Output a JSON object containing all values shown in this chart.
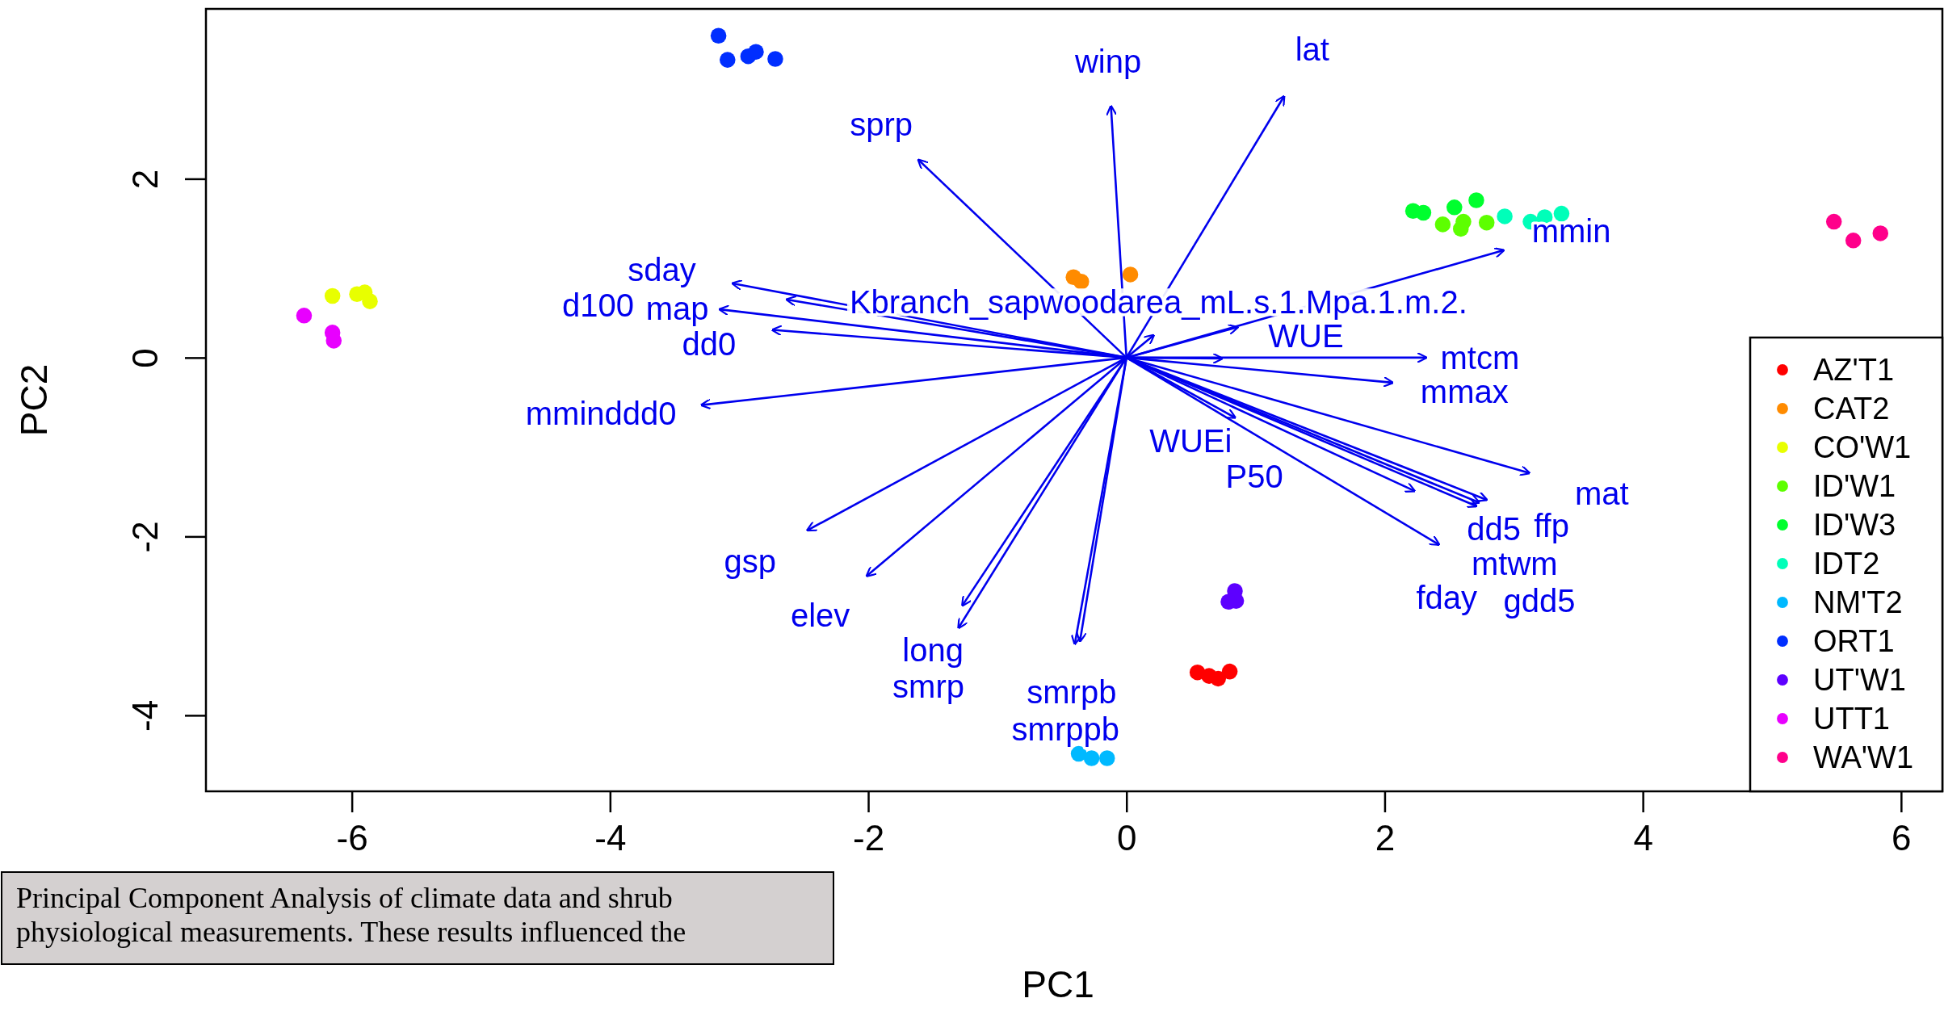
{
  "chart_data": {
    "type": "scatter",
    "xlabel": "PC1",
    "ylabel": "PC2",
    "xlim": [
      -7.13,
      6.32
    ],
    "ylim": [
      -4.85,
      3.9
    ],
    "xticks": [
      -6,
      -4,
      -2,
      0,
      2,
      4,
      6
    ],
    "yticks": [
      -4,
      -2,
      0,
      2
    ],
    "grid": false,
    "legend": "bottom right",
    "marker": "circle",
    "annotations": [
      "Principal Component Analysis of climate data and shrub physiological measurements. These results influenced the"
    ],
    "series": [
      {
        "name": "AZ'T1",
        "color": "#ff0000",
        "x": [
          0.55,
          0.64,
          0.71,
          0.8
        ],
        "values": [
          -3.52,
          -3.56,
          -3.59,
          -3.51
        ]
      },
      {
        "name": "CAT2",
        "color": "#ff8b00",
        "x": [
          -0.41,
          -0.35,
          0.03
        ],
        "values": [
          0.9,
          0.85,
          0.93
        ]
      },
      {
        "name": "CO'W1",
        "color": "#e8ff00",
        "x": [
          -6.15,
          -5.96,
          -5.9,
          -5.86
        ],
        "values": [
          0.69,
          0.71,
          0.73,
          0.63
        ]
      },
      {
        "name": "ID'W1",
        "color": "#5dff00",
        "x": [
          2.45,
          2.61,
          2.79,
          2.59
        ],
        "values": [
          1.49,
          1.52,
          1.51,
          1.44
        ]
      },
      {
        "name": "ID'W3",
        "color": "#00ff2e",
        "x": [
          2.22,
          2.3,
          2.54,
          2.71
        ],
        "values": [
          1.64,
          1.62,
          1.68,
          1.76
        ]
      },
      {
        "name": "IDT2",
        "color": "#00ffb9",
        "x": [
          2.93,
          3.13,
          3.24,
          3.37
        ],
        "values": [
          1.58,
          1.52,
          1.57,
          1.61
        ]
      },
      {
        "name": "NM'T2",
        "color": "#00b9ff",
        "x": [
          -0.37,
          -0.27,
          -0.15
        ],
        "values": [
          -4.43,
          -4.48,
          -4.48
        ]
      },
      {
        "name": "ORT1",
        "color": "#002eff",
        "x": [
          -3.16,
          -3.09,
          -2.93,
          -2.87,
          -2.72
        ],
        "values": [
          3.6,
          3.33,
          3.37,
          3.42,
          3.34
        ]
      },
      {
        "name": "UT'W1",
        "color": "#5d00ff",
        "x": [
          0.84,
          0.85,
          0.79
        ],
        "values": [
          -2.61,
          -2.72,
          -2.73
        ]
      },
      {
        "name": "UTT1",
        "color": "#e800ff",
        "x": [
          -6.37,
          -6.15,
          -6.14
        ],
        "values": [
          0.47,
          0.28,
          0.19
        ]
      },
      {
        "name": "WA'W1",
        "color": "#ff008b",
        "x": [
          5.48,
          5.63,
          5.84
        ],
        "values": [
          1.52,
          1.31,
          1.39
        ]
      },
      {
        "type": "line",
        "marker": "none",
        "name": "winp",
        "color": "#0000ee",
        "x": [
          0,
          -0.12
        ],
        "values": [
          0,
          2.81
        ]
      },
      {
        "type": "line",
        "marker": "none",
        "name": "lat",
        "color": "#0000ee",
        "x": [
          0,
          1.22
        ],
        "values": [
          0,
          2.92
        ]
      },
      {
        "type": "line",
        "marker": "none",
        "name": "sprp",
        "color": "#0000ee",
        "x": [
          0,
          -1.61
        ],
        "values": [
          0,
          2.21
        ]
      },
      {
        "type": "line",
        "marker": "none",
        "name": "mmin",
        "color": "#0000ee",
        "x": [
          0,
          2.92
        ],
        "values": [
          0,
          1.2
        ]
      },
      {
        "type": "line",
        "marker": "none",
        "name": "sday",
        "color": "#0000ee",
        "x": [
          0,
          -3.05
        ],
        "values": [
          0,
          0.83
        ]
      },
      {
        "type": "line",
        "marker": "none",
        "name": "map",
        "color": "#0000ee",
        "x": [
          0,
          -2.63
        ],
        "values": [
          0,
          0.65
        ]
      },
      {
        "type": "line",
        "marker": "none",
        "name": "d100",
        "color": "#0000ee",
        "x": [
          0,
          -3.15
        ],
        "values": [
          0,
          0.54
        ]
      },
      {
        "type": "line",
        "marker": "none",
        "name": "dd0",
        "color": "#0000ee",
        "x": [
          0,
          -2.74
        ],
        "values": [
          0,
          0.31
        ]
      },
      {
        "type": "line",
        "marker": "none",
        "name": "Kbranch_sapwoodarea_mL.s.1.Mpa.1.m.2.",
        "color": "#0000ee",
        "x": [
          0,
          0.21
        ],
        "values": [
          0,
          0.25
        ]
      },
      {
        "type": "line",
        "marker": "none",
        "name": "WUE",
        "color": "#0000ee",
        "x": [
          0,
          0.86
        ],
        "values": [
          0,
          0.34
        ]
      },
      {
        "type": "line",
        "marker": "none",
        "name": "WUEi",
        "color": "#0000ee",
        "x": [
          0,
          0.74
        ],
        "values": [
          0,
          -0.01
        ]
      },
      {
        "type": "line",
        "marker": "none",
        "name": "mtcm",
        "color": "#0000ee",
        "x": [
          0,
          2.32
        ],
        "values": [
          0,
          0
        ]
      },
      {
        "type": "line",
        "marker": "none",
        "name": "mmax",
        "color": "#0000ee",
        "x": [
          0,
          2.06
        ],
        "values": [
          0,
          -0.28
        ]
      },
      {
        "type": "line",
        "marker": "none",
        "name": "mminddd0",
        "color": "#0000ee",
        "x": [
          0,
          -3.29
        ],
        "values": [
          0,
          -0.53
        ]
      },
      {
        "type": "line",
        "marker": "none",
        "name": "P50",
        "color": "#0000ee",
        "x": [
          0,
          0.84
        ],
        "values": [
          0,
          -0.67
        ]
      },
      {
        "type": "line",
        "marker": "none",
        "name": "mat",
        "color": "#0000ee",
        "x": [
          0,
          3.12
        ],
        "values": [
          0,
          -1.29
        ]
      },
      {
        "type": "line",
        "marker": "none",
        "name": "ffp",
        "color": "#0000ee",
        "x": [
          0,
          2.79
        ],
        "values": [
          0,
          -1.59
        ]
      },
      {
        "type": "line",
        "marker": "none",
        "name": "mtwm",
        "color": "#0000ee",
        "x": [
          0,
          2.23
        ],
        "values": [
          0,
          -1.49
        ]
      },
      {
        "type": "line",
        "marker": "none",
        "name": "dd5",
        "color": "#0000ee",
        "x": [
          0,
          2.73
        ],
        "values": [
          0,
          -1.62
        ]
      },
      {
        "type": "line",
        "marker": "none",
        "name": "gdd5",
        "color": "#0000ee",
        "x": [
          0,
          2.71
        ],
        "values": [
          0,
          -1.66
        ]
      },
      {
        "type": "line",
        "marker": "none",
        "name": "fday",
        "color": "#0000ee",
        "x": [
          0,
          2.42
        ],
        "values": [
          0,
          -2.09
        ]
      },
      {
        "type": "line",
        "marker": "none",
        "name": "gsp",
        "color": "#0000ee",
        "x": [
          0,
          -2.47
        ],
        "values": [
          0,
          -1.93
        ]
      },
      {
        "type": "line",
        "marker": "none",
        "name": "elev",
        "color": "#0000ee",
        "x": [
          0,
          -2.01
        ],
        "values": [
          0,
          -2.44
        ]
      },
      {
        "type": "line",
        "marker": "none",
        "name": "long",
        "color": "#0000ee",
        "x": [
          0,
          -1.27
        ],
        "values": [
          0,
          -2.77
        ]
      },
      {
        "type": "line",
        "marker": "none",
        "name": "smrp",
        "color": "#0000ee",
        "x": [
          0,
          -1.3
        ],
        "values": [
          0,
          -3.02
        ]
      },
      {
        "type": "line",
        "marker": "none",
        "name": "smrpb",
        "color": "#0000ee",
        "x": [
          0,
          -0.36
        ],
        "values": [
          0,
          -3.17
        ]
      },
      {
        "type": "line",
        "marker": "none",
        "name": "smrppb",
        "color": "#0000ee",
        "x": [
          0,
          -0.4
        ],
        "values": [
          0,
          -3.2
        ]
      }
    ]
  }
}
